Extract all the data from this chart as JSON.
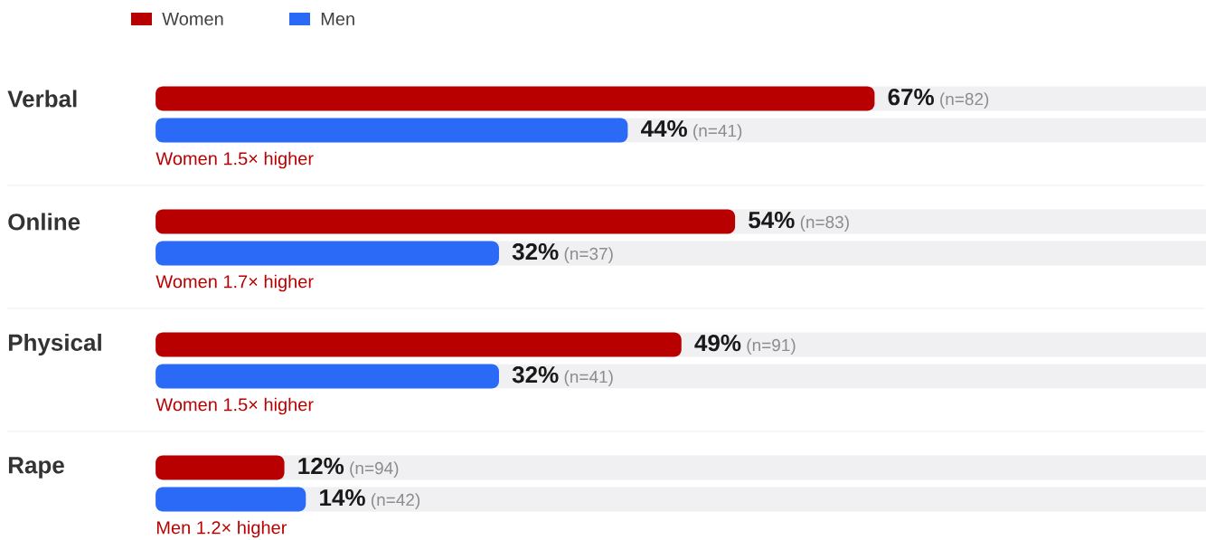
{
  "chart_data": {
    "type": "bar",
    "orientation": "horizontal",
    "categories": [
      "Verbal",
      "Online",
      "Physical",
      "Rape"
    ],
    "series": [
      {
        "name": "Women",
        "color": "#b80000",
        "values": [
          67,
          54,
          49,
          12
        ],
        "value_labels": [
          "**67%** (n=82)",
          "**54%** (n=83)",
          "**49%** (n=91)",
          "**12%** (n=94)"
        ]
      },
      {
        "name": "Men",
        "color": "#2a6af7",
        "values": [
          44,
          32,
          32,
          14
        ],
        "value_labels": [
          "**44%** (n=41)",
          "**32%** (n=37)",
          "**32%** (n=41)",
          "**14%** (n=42)"
        ]
      }
    ],
    "xlim": [
      0,
      100
    ],
    "tick_labels": "y",
    "legend": "top left",
    "annotations": [
      "Women 1.5× higher",
      "Women 1.7× higher",
      "Women 1.5× higher",
      "Men 1.2× higher"
    ]
  }
}
